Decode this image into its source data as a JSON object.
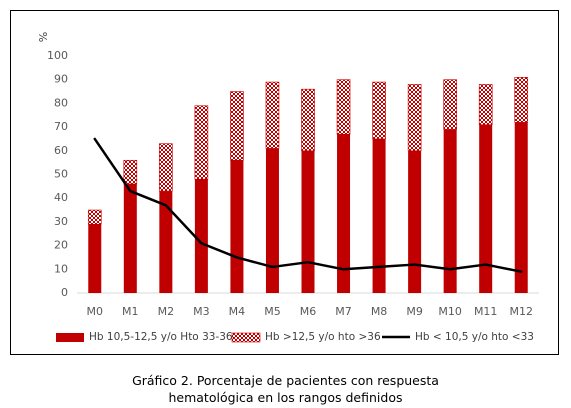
{
  "chart_data": {
    "type": "bar",
    "ylabel": "%",
    "ylim": [
      0,
      100
    ],
    "yticks": [
      "0",
      "10",
      "20",
      "30",
      "40",
      "50",
      "60",
      "70",
      "80",
      "90",
      "100"
    ],
    "categories": [
      "M0",
      "M1",
      "M2",
      "M3",
      "M4",
      "M5",
      "M6",
      "M7",
      "M8",
      "M9",
      "M10",
      "M11",
      "M12"
    ],
    "series": [
      {
        "name": "Hb 10,5-12,5 y/o Hto 33-36",
        "kind": "bar-stacked-solid",
        "color": "#c00000",
        "values": [
          29,
          46,
          43,
          48,
          56,
          61,
          60,
          67,
          65,
          60,
          69,
          71,
          72
        ]
      },
      {
        "name": "Hb >12,5 y/o hto >36",
        "kind": "bar-stacked-pattern",
        "color": "#c00000",
        "values": [
          6,
          10,
          20,
          31,
          29,
          28,
          26,
          23,
          24,
          28,
          21,
          17,
          19
        ]
      },
      {
        "name": "Hb < 10,5 y/o hto <33",
        "kind": "line",
        "color": "#000000",
        "values": [
          65,
          43,
          37,
          21,
          15,
          11,
          13,
          10,
          11,
          12,
          10,
          12,
          9
        ]
      }
    ],
    "legend_position": "bottom",
    "grid": false
  },
  "caption": {
    "line1": "Gráfico 2. Porcentaje de pacientes con respuesta",
    "line2": "hematológica en los rangos definidos"
  }
}
